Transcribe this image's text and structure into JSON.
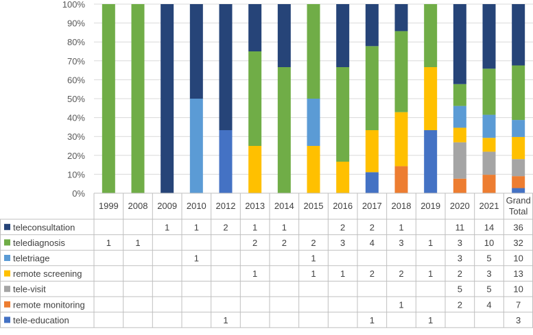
{
  "chart_data": {
    "type": "bar",
    "stacked": true,
    "normalized": true,
    "categories": [
      "1999",
      "2008",
      "2009",
      "2010",
      "2012",
      "2013",
      "2014",
      "2015",
      "2016",
      "2017",
      "2018",
      "2019",
      "2020",
      "2021"
    ],
    "grand_total_label": [
      "Grand",
      "Total"
    ],
    "y_ticks": [
      "0%",
      "10%",
      "20%",
      "30%",
      "40%",
      "50%",
      "60%",
      "70%",
      "80%",
      "90%",
      "100%"
    ],
    "ylim": [
      0,
      100
    ],
    "grid": true,
    "legend": "table-left",
    "series": [
      {
        "name": "tele-education",
        "color": "#4472C4",
        "values": [
          null,
          null,
          null,
          null,
          1,
          null,
          null,
          null,
          null,
          1,
          null,
          1,
          null,
          null
        ],
        "total": 3
      },
      {
        "name": "remote monitoring",
        "color": "#ED7D31",
        "values": [
          null,
          null,
          null,
          null,
          null,
          null,
          null,
          null,
          null,
          null,
          1,
          null,
          2,
          4
        ],
        "total": 7
      },
      {
        "name": "tele-visit",
        "color": "#A5A5A5",
        "values": [
          null,
          null,
          null,
          null,
          null,
          null,
          null,
          null,
          null,
          null,
          null,
          null,
          5,
          5
        ],
        "total": 10
      },
      {
        "name": "remote screening",
        "color": "#FFC000",
        "values": [
          null,
          null,
          null,
          null,
          null,
          1,
          null,
          1,
          1,
          2,
          2,
          1,
          2,
          3
        ],
        "total": 13
      },
      {
        "name": "teletriage",
        "color": "#5B9BD5",
        "values": [
          null,
          null,
          null,
          1,
          null,
          null,
          null,
          1,
          null,
          null,
          null,
          null,
          3,
          5
        ],
        "total": 10
      },
      {
        "name": "telediagnosis",
        "color": "#70AD47",
        "values": [
          1,
          1,
          null,
          null,
          null,
          2,
          2,
          2,
          3,
          4,
          3,
          1,
          3,
          10
        ],
        "total": 32
      },
      {
        "name": "teleconsultation",
        "color": "#264478",
        "values": [
          null,
          null,
          1,
          1,
          2,
          1,
          1,
          null,
          2,
          2,
          1,
          null,
          11,
          14
        ],
        "total": 36
      }
    ],
    "table_row_order": [
      "teleconsultation",
      "telediagnosis",
      "teletriage",
      "remote screening",
      "tele-visit",
      "remote monitoring",
      "tele-education"
    ]
  }
}
